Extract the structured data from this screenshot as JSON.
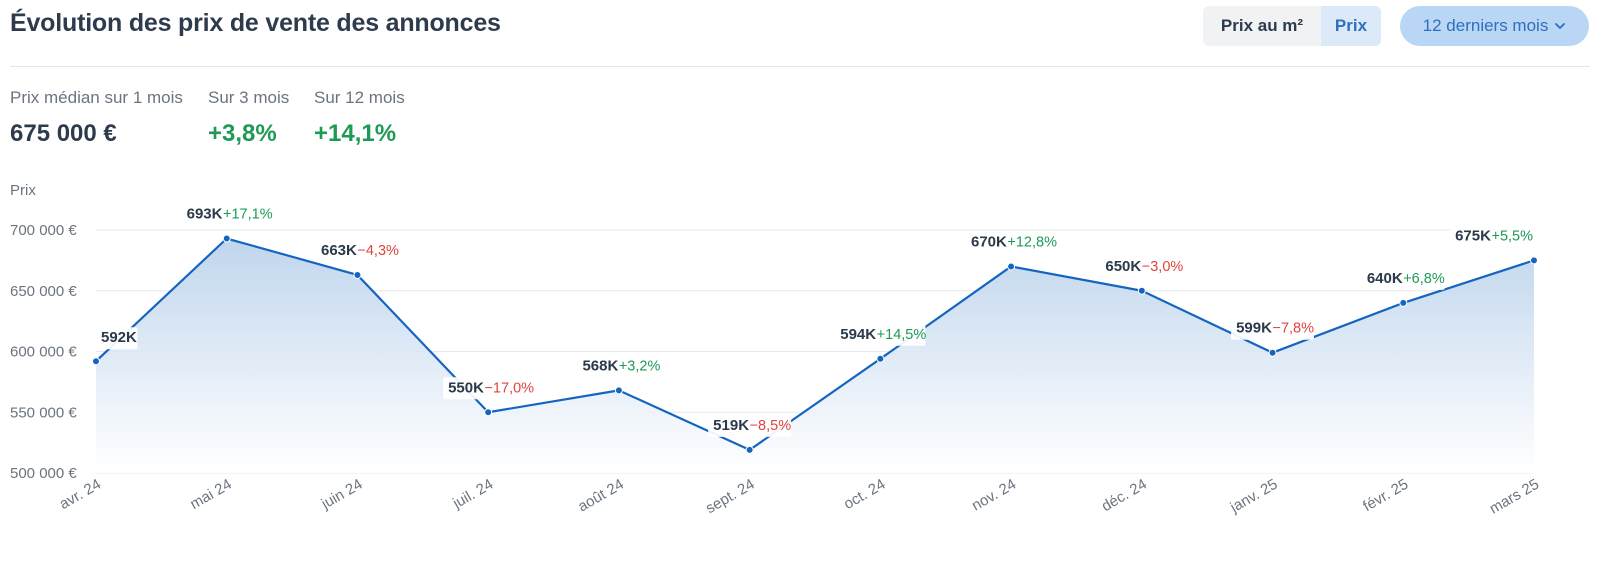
{
  "header": {
    "title": "Évolution des prix de vente des annonces",
    "toggle": {
      "option_m2": "Prix au m²",
      "option_prix": "Prix",
      "selected": "Prix"
    },
    "period_label": "12 derniers mois",
    "period_icon": "chevron-down-icon"
  },
  "stats": [
    {
      "label": "Prix médian sur 1 mois",
      "value": "675 000 €"
    },
    {
      "label": "Sur 3 mois",
      "value": "+3,8%"
    },
    {
      "label": "Sur 12 mois",
      "value": "+14,1%"
    }
  ],
  "colors": {
    "line": "#1565c0",
    "positive": "#1e9a55",
    "negative": "#e0443e",
    "accent": "#2f6fc0"
  },
  "chart_data": {
    "type": "area",
    "ylabel": "Prix",
    "ylim": [
      500000,
      700000
    ],
    "y_ticks": [
      {
        "value": 700000,
        "label": "700 000 €"
      },
      {
        "value": 650000,
        "label": "650 000 €"
      },
      {
        "value": 600000,
        "label": "600 000 €"
      },
      {
        "value": 550000,
        "label": "550 000 €"
      },
      {
        "value": 500000,
        "label": "500 000 €"
      }
    ],
    "grid": true,
    "categories": [
      "avr. 24",
      "mai 24",
      "juin 24",
      "juil. 24",
      "août 24",
      "sept. 24",
      "oct. 24",
      "nov. 24",
      "déc. 24",
      "janv. 25",
      "févr. 25",
      "mars 25"
    ],
    "values": [
      592000,
      693000,
      663000,
      550000,
      568000,
      519000,
      594000,
      670000,
      650000,
      599000,
      640000,
      675000
    ],
    "value_labels": [
      "592K",
      "693K",
      "663K",
      "550K",
      "568K",
      "519K",
      "594K",
      "670K",
      "650K",
      "599K",
      "640K",
      "675K"
    ],
    "change_labels": [
      "",
      "+17,1%",
      "−4,3%",
      "−17,0%",
      "+3,2%",
      "−8,5%",
      "+14,5%",
      "+12,8%",
      "−3,0%",
      "−7,8%",
      "+6,8%",
      "+5,5%"
    ]
  }
}
